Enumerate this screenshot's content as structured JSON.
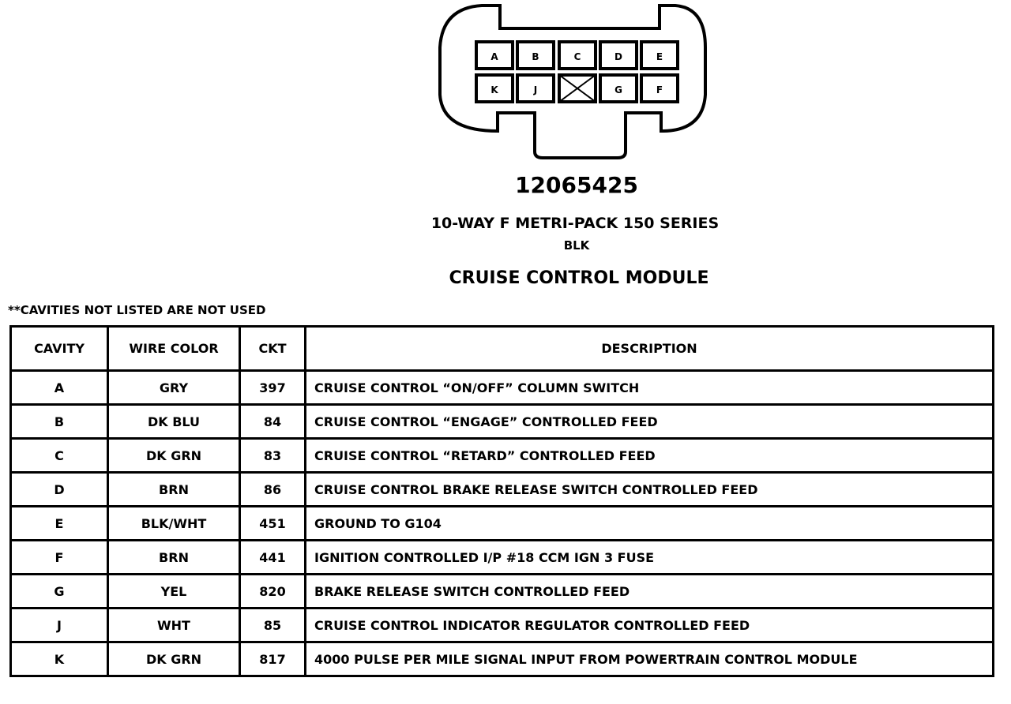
{
  "connector": {
    "cavities_top": [
      "A",
      "B",
      "C",
      "D",
      "E"
    ],
    "cavities_bottom": [
      "K",
      "J",
      "",
      "G",
      "F"
    ],
    "unused_cavity_marker": "x-mark"
  },
  "part_number": "12065425",
  "series": "10-WAY F METRI-PACK 150 SERIES",
  "color": "BLK",
  "module": "CRUISE CONTROL MODULE",
  "note": "**CAVITIES NOT LISTED ARE NOT USED",
  "table": {
    "headers": [
      "CAVITY",
      "WIRE COLOR",
      "CKT",
      "DESCRIPTION"
    ],
    "rows": [
      [
        "A",
        "GRY",
        "397",
        "CRUISE CONTROL “ON/OFF” COLUMN SWITCH"
      ],
      [
        "B",
        "DK BLU",
        "84",
        "CRUISE CONTROL “ENGAGE” CONTROLLED FEED"
      ],
      [
        "C",
        "DK GRN",
        "83",
        "CRUISE CONTROL “RETARD” CONTROLLED FEED"
      ],
      [
        "D",
        "BRN",
        "86",
        "CRUISE CONTROL BRAKE RELEASE SWITCH CONTROLLED FEED"
      ],
      [
        "E",
        "BLK/WHT",
        "451",
        "GROUND TO G104"
      ],
      [
        "F",
        "BRN",
        "441",
        "IGNITION CONTROLLED I/P #18 CCM IGN 3 FUSE"
      ],
      [
        "G",
        "YEL",
        "820",
        "BRAKE RELEASE SWITCH CONTROLLED FEED"
      ],
      [
        "J",
        "WHT",
        "85",
        "CRUISE CONTROL INDICATOR REGULATOR CONTROLLED FEED"
      ],
      [
        "K",
        "DK GRN",
        "817",
        "4000 PULSE PER MILE SIGNAL INPUT FROM POWERTRAIN CONTROL MODULE"
      ]
    ]
  }
}
